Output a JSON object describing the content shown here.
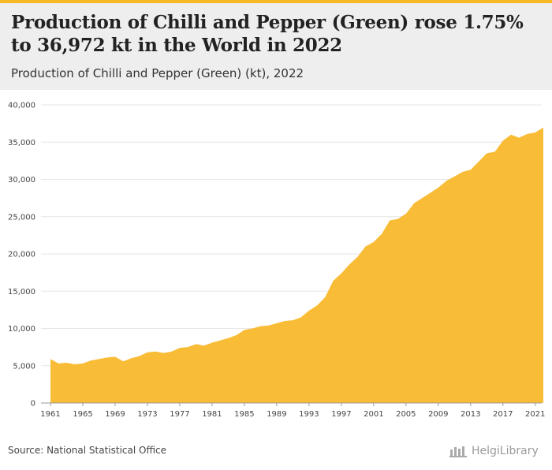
{
  "header": {
    "title": "Production of Chilli and Pepper (Green) rose 1.75% to 36,972 kt in the World in 2022",
    "subtitle": "Production of Chilli and Pepper (Green) (kt), 2022"
  },
  "footer": {
    "source": "Source: National Statistical Office",
    "logo_text": "HelgiLibrary"
  },
  "colors": {
    "area": "#f9bc37",
    "grid": "#e6e6e6",
    "axis": "#999999"
  },
  "chart_data": {
    "type": "area",
    "x": [
      1961,
      1962,
      1963,
      1964,
      1965,
      1966,
      1967,
      1968,
      1969,
      1970,
      1971,
      1972,
      1973,
      1974,
      1975,
      1976,
      1977,
      1978,
      1979,
      1980,
      1981,
      1982,
      1983,
      1984,
      1985,
      1986,
      1987,
      1988,
      1989,
      1990,
      1991,
      1992,
      1993,
      1994,
      1995,
      1996,
      1997,
      1998,
      1999,
      2000,
      2001,
      2002,
      2003,
      2004,
      2005,
      2006,
      2007,
      2008,
      2009,
      2010,
      2011,
      2012,
      2013,
      2014,
      2015,
      2016,
      2017,
      2018,
      2019,
      2020,
      2021,
      2022
    ],
    "values": [
      5900,
      5300,
      5400,
      5200,
      5300,
      5700,
      5900,
      6100,
      6200,
      5600,
      6000,
      6300,
      6800,
      6900,
      6700,
      6900,
      7400,
      7500,
      7900,
      7700,
      8100,
      8400,
      8700,
      9100,
      9800,
      10000,
      10300,
      10400,
      10700,
      11000,
      11100,
      11500,
      12400,
      13100,
      14200,
      16400,
      17400,
      18600,
      19600,
      21000,
      21600,
      22700,
      24500,
      24700,
      25400,
      26800,
      27500,
      28200,
      28900,
      29800,
      30400,
      31000,
      31300,
      32400,
      33500,
      33700,
      35200,
      36000,
      35600,
      36100,
      36300,
      36972
    ],
    "xticks": [
      1961,
      1965,
      1969,
      1973,
      1977,
      1981,
      1985,
      1989,
      1993,
      1997,
      2001,
      2005,
      2009,
      2013,
      2017,
      2021
    ],
    "yticks": [
      0,
      5000,
      10000,
      15000,
      20000,
      25000,
      30000,
      35000,
      40000
    ],
    "ylim": [
      0,
      40000
    ],
    "xlabel": "",
    "ylabel": "",
    "grid": true
  }
}
